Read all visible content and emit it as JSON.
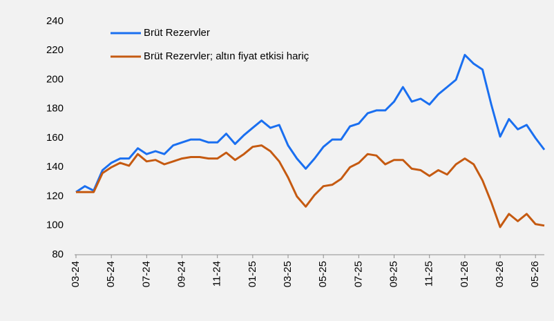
{
  "chart_data": {
    "type": "line",
    "categories": [
      "03-24",
      null,
      null,
      null,
      "05-24",
      null,
      null,
      null,
      "07-24",
      null,
      null,
      null,
      "09-24",
      null,
      null,
      null,
      "11-24",
      null,
      null,
      null,
      "01-25",
      null,
      null,
      null,
      "03-25",
      null,
      null,
      null,
      "05-25",
      null,
      null,
      null,
      "07-25",
      null,
      null,
      null,
      "09-25",
      null,
      null,
      null,
      "11-25",
      null,
      null,
      null,
      "01-26",
      null,
      null,
      null,
      "03-26",
      null,
      null,
      null,
      "05-26",
      null
    ],
    "series": [
      {
        "name": "Brüt Rezervler",
        "color": "#1a6ff0",
        "values": [
          123,
          127,
          124,
          138,
          143,
          146,
          146,
          153,
          149,
          151,
          149,
          155,
          157,
          159,
          159,
          157,
          157,
          163,
          156,
          162,
          167,
          172,
          167,
          169,
          155,
          146,
          139,
          146,
          154,
          159,
          159,
          168,
          170,
          177,
          179,
          179,
          185,
          195,
          185,
          187,
          183,
          190,
          195,
          200,
          217,
          211,
          207,
          183,
          161,
          173,
          166,
          169,
          160,
          152
        ]
      },
      {
        "name": "Brüt Rezervler; altın fiyat etkisi hariç",
        "color": "#c55a11",
        "values": [
          123,
          123,
          123,
          136,
          140,
          143,
          141,
          149,
          144,
          145,
          142,
          144,
          146,
          147,
          147,
          146,
          146,
          150,
          145,
          149,
          154,
          155,
          151,
          144,
          133,
          120,
          113,
          121,
          127,
          128,
          132,
          140,
          143,
          149,
          148,
          142,
          145,
          145,
          139,
          138,
          134,
          138,
          135,
          142,
          146,
          142,
          131,
          116,
          99,
          108,
          103,
          108,
          101,
          100
        ]
      }
    ],
    "ylim": [
      80,
      240
    ],
    "yticks": [
      80,
      100,
      120,
      140,
      160,
      180,
      200,
      220,
      240
    ],
    "legend": "top-left"
  }
}
